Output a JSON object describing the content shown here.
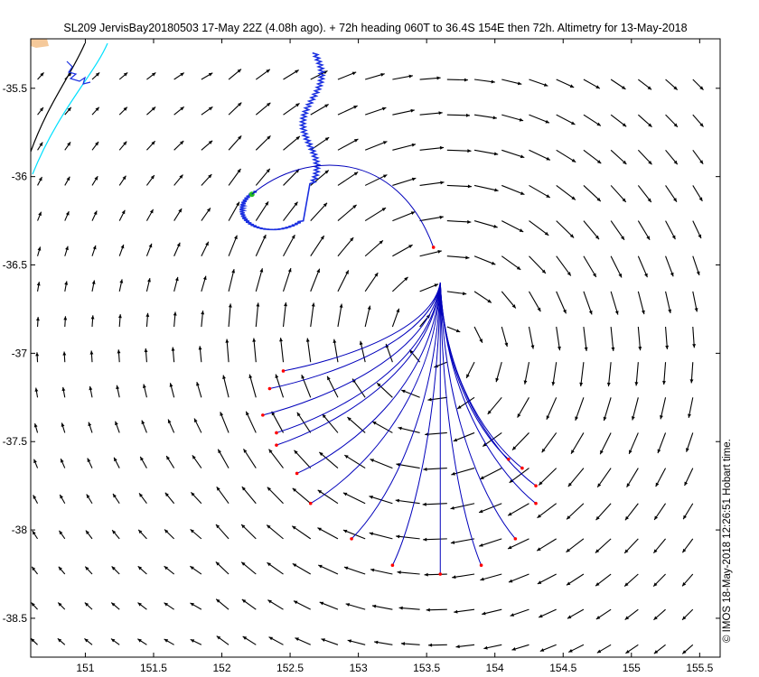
{
  "chart_data": {
    "type": "quiver-map",
    "title": "SL209 JervisBay20180503 17-May 22Z (4.08h ago). + 72h heading 060T to 36.4S 154E then 72h. Altimetry for 13-May-2018",
    "credit": "© IMOS 18-May-2018 12:26:51 Hobart time.",
    "xlim": [
      150.6,
      155.65
    ],
    "ylim": [
      -38.72,
      -35.22
    ],
    "x_ticks": [
      151,
      151.5,
      152,
      152.5,
      153,
      153.5,
      154,
      154.5,
      155,
      155.5
    ],
    "x_tick_labels": [
      "151",
      "151.5",
      "152",
      "152.5",
      "153",
      "153.5",
      "154",
      "154.5",
      "155",
      "155.5"
    ],
    "y_ticks": [
      -35.5,
      -36,
      -36.5,
      -37,
      -37.5,
      -38,
      -38.5
    ],
    "y_tick_labels": [
      "-35.5",
      "-36",
      "-36.5",
      "-37",
      "-37.5",
      "-38",
      "-38.5"
    ],
    "eddy_center": [
      153.6,
      -36.95
    ],
    "glider_position": [
      152.22,
      -36.1
    ],
    "plan_target": [
      153.55,
      -36.4
    ],
    "forecast_origin": [
      153.6,
      -36.6
    ],
    "forecast_endpoints": [
      [
        152.45,
        -37.1
      ],
      [
        152.35,
        -37.2
      ],
      [
        152.3,
        -37.35
      ],
      [
        152.4,
        -37.45
      ],
      [
        152.4,
        -37.52
      ],
      [
        152.55,
        -37.68
      ],
      [
        152.65,
        -37.85
      ],
      [
        152.95,
        -38.05
      ],
      [
        153.25,
        -38.2
      ],
      [
        153.6,
        -38.25
      ],
      [
        153.9,
        -38.2
      ],
      [
        154.15,
        -38.05
      ],
      [
        154.3,
        -37.85
      ],
      [
        154.3,
        -37.75
      ],
      [
        154.2,
        -37.65
      ],
      [
        154.1,
        -37.6
      ]
    ],
    "colors": {
      "vectors": "#000000",
      "glider_track": "#1a2fe0",
      "forecast_paths": "#0000bb",
      "forecast_ends": "#ff0000",
      "coast_land": "#f5c99a",
      "isobath_cyan": "#00e0ff",
      "isobath_black": "#000000"
    }
  }
}
